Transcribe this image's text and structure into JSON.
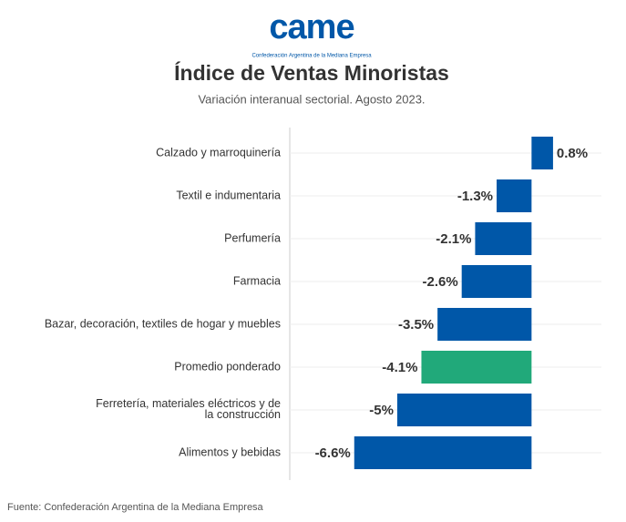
{
  "logo_text": "came",
  "logo_subtext": "Confederación Argentina de la Mediana Empresa",
  "source": "Fuente: Confederación Argentina de la Mediana Empresa",
  "chart_data": {
    "type": "bar",
    "orientation": "horizontal",
    "title": "Índice de Ventas Minoristas",
    "subtitle": "Variación interanual sectorial. Agosto 2023.",
    "categories": [
      "Calzado y marroquinería",
      "Textil e indumentaria",
      "Perfumería",
      "Farmacia",
      "Bazar, decoración, textiles de hogar y muebles",
      "Promedio ponderado",
      "Ferretería, materiales eléctricos y de la construcción",
      "Alimentos y bebidas"
    ],
    "values": [
      0.8,
      -1.3,
      -2.1,
      -2.6,
      -3.5,
      -4.1,
      -5,
      -6.6
    ],
    "value_labels": [
      "0.8%",
      "-1.3%",
      "-2.1%",
      "-2.6%",
      "-3.5%",
      "-4.1%",
      "-5%",
      "-6.6%"
    ],
    "colors": [
      "#0057a8",
      "#0057a8",
      "#0057a8",
      "#0057a8",
      "#0057a8",
      "#21a97a",
      "#0057a8",
      "#0057a8"
    ],
    "xlim": [
      -9,
      2.6
    ]
  }
}
